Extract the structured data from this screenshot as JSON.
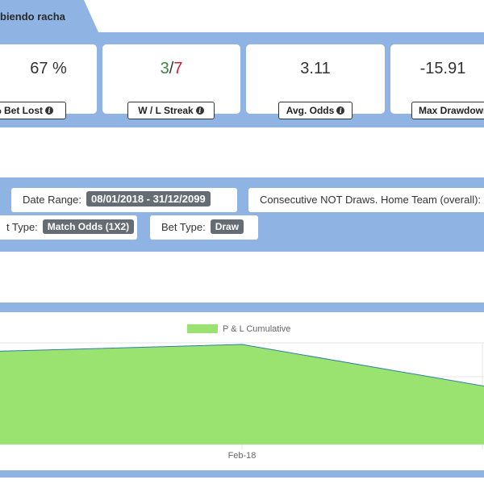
{
  "tab": {
    "title": "biendo racha"
  },
  "stats": {
    "bet_lost": {
      "value": "67 %",
      "label": "% Bet Lost"
    },
    "wl_streak": {
      "wins": "3",
      "sep": "/",
      "losses": "7",
      "label": "W / L Streak"
    },
    "avg_odds": {
      "value": "3.11",
      "label": "Avg. Odds"
    },
    "max_drawdown": {
      "value": "-15.91",
      "label": "Max Drawdown"
    }
  },
  "filters": {
    "date_range": {
      "label": "Date Range:",
      "value": "08/01/2018 - 31/12/2099"
    },
    "strategy": {
      "label": "Consecutive NOT Draws. Home Team (overall):"
    },
    "market_type": {
      "label": "t Type:",
      "value": "Match Odds (1X2)"
    },
    "bet_type": {
      "label": "Bet Type:",
      "value": "Draw"
    }
  },
  "colors": {
    "band": "#8fb4e3",
    "area_fill": "#9be371",
    "area_line": "#2e7fa8",
    "win": "#3c8a3c",
    "loss": "#d0202f"
  },
  "chart_data": {
    "type": "area",
    "series": [
      {
        "name": "P & L Cumulative",
        "x_labels": [
          "",
          "Feb-18",
          ""
        ],
        "values": [
          0.93,
          1.0,
          0.57
        ]
      }
    ],
    "x_tick_labels": [
      "Feb-18"
    ],
    "legend_position": "top-center",
    "grid": true
  }
}
